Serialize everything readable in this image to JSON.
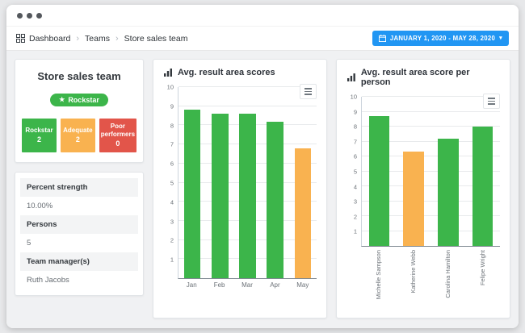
{
  "breadcrumb": {
    "separator": "›",
    "items": [
      {
        "label": "Dashboard"
      },
      {
        "label": "Teams"
      },
      {
        "label": "Store sales team"
      }
    ]
  },
  "date_range_button": {
    "label": "JANUARY 1, 2020 - MAY 28, 2020",
    "color": "#2196f3"
  },
  "team_card": {
    "title": "Store sales team",
    "badge": {
      "label": "Rockstar",
      "icon": "star",
      "color": "#3cb54a"
    },
    "stats": [
      {
        "label": "Rockstar",
        "value": "2",
        "color": "#3cb54a"
      },
      {
        "label": "Adequate",
        "value": "2",
        "color": "#f9b250"
      },
      {
        "label": "Poor performers",
        "value": "0",
        "color": "#e2554a"
      }
    ]
  },
  "details_card": {
    "rows": [
      {
        "label": "Percent strength",
        "value": "10.00%"
      },
      {
        "label": "Persons",
        "value": "5"
      },
      {
        "label": "Team manager(s)",
        "value": "Ruth Jacobs"
      }
    ]
  },
  "chart_data": [
    {
      "type": "bar",
      "title": "Avg. result area scores",
      "categories": [
        "Jan",
        "Feb",
        "Mar",
        "Apr",
        "May"
      ],
      "values": [
        8.8,
        8.6,
        8.6,
        8.2,
        6.8
      ],
      "colors": [
        "#3cb54a",
        "#3cb54a",
        "#3cb54a",
        "#3cb54a",
        "#f9b250"
      ],
      "ylim": [
        0,
        10
      ],
      "yticks": [
        1,
        2,
        3,
        4,
        5,
        6,
        7,
        8,
        9,
        10
      ],
      "grid": true,
      "legend": "none",
      "xlabel_rotation": 0
    },
    {
      "type": "bar",
      "title": "Avg. result area score per person",
      "categories": [
        "Michelle Sampson",
        "Katherine Webb",
        "Carolina Hamilton",
        "Felipe Wright"
      ],
      "values": [
        8.7,
        6.3,
        7.2,
        8.0
      ],
      "colors": [
        "#3cb54a",
        "#f9b250",
        "#3cb54a",
        "#3cb54a"
      ],
      "ylim": [
        0,
        10
      ],
      "yticks": [
        1,
        2,
        3,
        4,
        5,
        6,
        7,
        8,
        9,
        10
      ],
      "grid": true,
      "legend": "none",
      "xlabel_rotation": 90
    }
  ]
}
